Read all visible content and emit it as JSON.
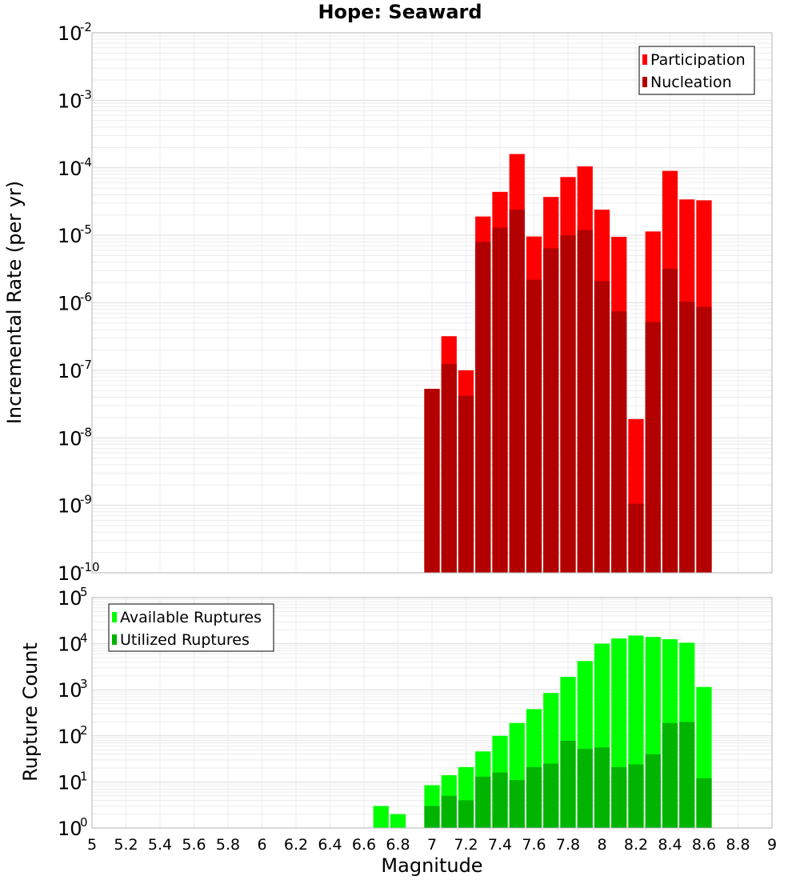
{
  "title": "Hope: Seaward",
  "chart_data": [
    {
      "type": "bar",
      "subplot": "top",
      "ylabel": "Incremental Rate (per yr)",
      "yscale": "log",
      "ylim_exp": [
        -10,
        -2
      ],
      "y_tick_exponents": [
        "-10",
        "-9",
        "-8",
        "-7",
        "-6",
        "-5",
        "-4",
        "-3",
        "-2"
      ],
      "y_tick_base": "10",
      "x": [
        7.0,
        7.1,
        7.2,
        7.3,
        7.4,
        7.5,
        7.6,
        7.7,
        7.8,
        7.9,
        8.0,
        8.1,
        8.2,
        8.3,
        8.4,
        8.5,
        8.6
      ],
      "bar_width": 0.1,
      "series": [
        {
          "name": "Participation",
          "color": "#ff0000",
          "values": [
            5.3e-08,
            3.2e-07,
            1e-07,
            1.9e-05,
            4.4e-05,
            0.00016,
            9.6e-06,
            3.7e-05,
            7.3e-05,
            0.000105,
            2.4e-05,
            9.5e-06,
            1.9e-08,
            1.14e-05,
            9e-05,
            3.4e-05,
            3.3e-05
          ]
        },
        {
          "name": "Nucleation",
          "color": "#b20000",
          "values": [
            5.3e-08,
            1.24e-07,
            4.2e-08,
            8e-06,
            1.3e-05,
            2.4e-05,
            2.2e-06,
            6.4e-06,
            1e-05,
            1.2e-05,
            2.1e-06,
            7.5e-07,
            1.06e-09,
            5.2e-07,
            3.2e-06,
            1.04e-06,
            8.7e-07
          ]
        }
      ],
      "legend_position": "top-right"
    },
    {
      "type": "bar",
      "subplot": "bottom",
      "ylabel": "Rupture Count",
      "xlabel": "Magnitude",
      "yscale": "log",
      "ylim_exp": [
        0,
        5
      ],
      "y_tick_exponents": [
        "0",
        "1",
        "2",
        "3",
        "4",
        "5"
      ],
      "y_tick_base": "10",
      "xlim": [
        5,
        9
      ],
      "x_ticks": [
        "5",
        "5.2",
        "5.4",
        "5.6",
        "5.8",
        "6",
        "6.2",
        "6.4",
        "6.6",
        "6.8",
        "7",
        "7.2",
        "7.4",
        "7.6",
        "7.8",
        "8",
        "8.2",
        "8.4",
        "8.6",
        "8.8",
        "9"
      ],
      "x": [
        6.7,
        6.8,
        6.9,
        7.0,
        7.1,
        7.2,
        7.3,
        7.4,
        7.5,
        7.6,
        7.7,
        7.8,
        7.9,
        8.0,
        8.1,
        8.2,
        8.3,
        8.4,
        8.5,
        8.6
      ],
      "bar_width": 0.1,
      "series": [
        {
          "name": "Available Ruptures",
          "color": "#00ff00",
          "values": [
            3,
            2,
            1,
            8.5,
            14,
            21,
            46,
            100,
            190,
            380,
            850,
            1900,
            4200,
            10000,
            13000,
            15000,
            14000,
            12500,
            10500,
            1150
          ]
        },
        {
          "name": "Utilized Ruptures",
          "color": "#00b400",
          "values": [
            0,
            0,
            0,
            3,
            5,
            4,
            13,
            16,
            11,
            21,
            25,
            78,
            52,
            56,
            21,
            24,
            40,
            190,
            200,
            12
          ]
        }
      ],
      "legend_position": "top-left"
    }
  ]
}
